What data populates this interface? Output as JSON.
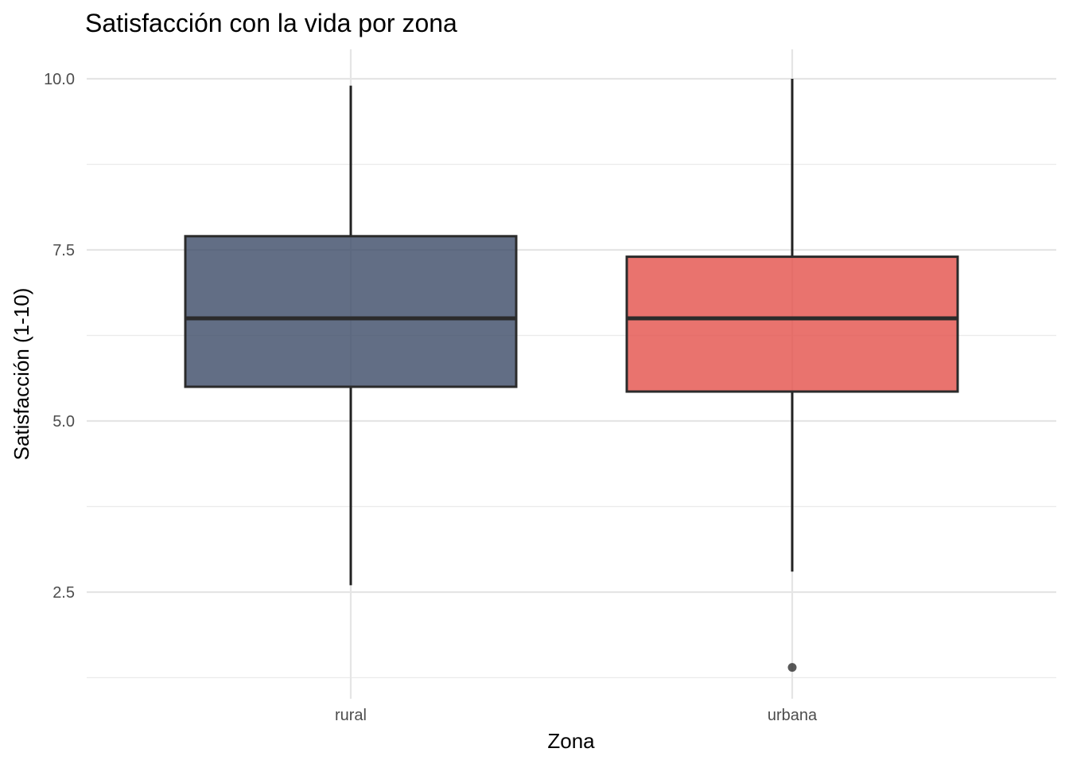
{
  "chart_data": {
    "type": "box",
    "title": "Satisfacción con la vida por zona",
    "xlabel": "Zona",
    "ylabel": "Satisfacción (1-10)",
    "ylim": [
      1.2,
      10.45
    ],
    "yticks": [
      2.5,
      5.0,
      7.5,
      10.0
    ],
    "ytick_labels": [
      "2.5",
      "5.0",
      "7.5",
      "10.0"
    ],
    "yminor": [
      3.75,
      6.25,
      8.75,
      1.25
    ],
    "grid": true,
    "legend": "none",
    "categories": [
      "rural",
      "urbana"
    ],
    "boxes": [
      {
        "category": "rural",
        "whisker_low": 2.6,
        "q1": 5.5,
        "median": 6.5,
        "q3": 7.7,
        "whisker_high": 9.9,
        "outliers": [],
        "color": "#3B4A66"
      },
      {
        "category": "urbana",
        "whisker_low": 2.8,
        "q1": 5.43,
        "median": 6.5,
        "q3": 7.4,
        "whisker_high": 10.0,
        "outliers": [
          1.4
        ],
        "color": "#E4504A"
      }
    ]
  }
}
